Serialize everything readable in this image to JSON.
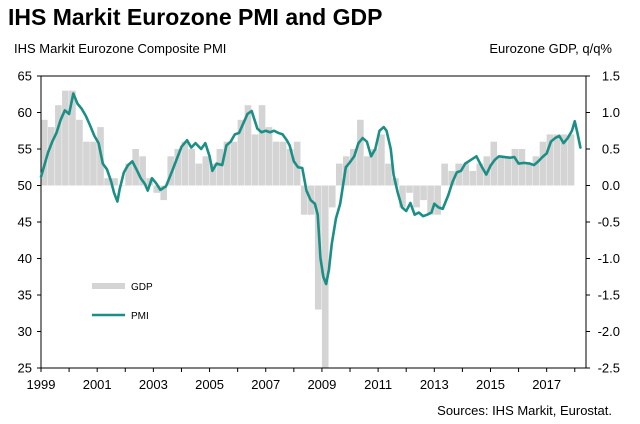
{
  "chart_data": {
    "type": "bar+line",
    "title": "IHS Markit Eurozone PMI and GDP",
    "left_axis_label": "IHS Markit Eurozone Composite PMI",
    "right_axis_label": "Eurozone GDP, q/q%",
    "source": "Sources: IHS Markit, Eurostat.",
    "x_range": [
      1999,
      2018.4
    ],
    "x_ticks": [
      "1999",
      "2001",
      "2003",
      "2005",
      "2007",
      "2009",
      "2011",
      "2013",
      "2015",
      "2017"
    ],
    "left_ylim": [
      25,
      65
    ],
    "left_ticks": [
      "25",
      "30",
      "35",
      "40",
      "45",
      "50",
      "55",
      "60",
      "65"
    ],
    "right_ylim": [
      -2.5,
      1.5
    ],
    "right_ticks": [
      "-2.5",
      "-2.0",
      "-1.5",
      "-1.0",
      "-0.5",
      "0.0",
      "0.5",
      "1.0",
      "1.5"
    ],
    "gdp_color": "#d4d4d4",
    "pmi_color": "#1b8f85",
    "series": [
      {
        "name": "GDP",
        "type": "bar",
        "axis": "right",
        "points": [
          [
            1999.0,
            0.9
          ],
          [
            1999.25,
            0.8
          ],
          [
            1999.5,
            1.1
          ],
          [
            1999.75,
            1.3
          ],
          [
            2000.0,
            1.3
          ],
          [
            2000.25,
            0.9
          ],
          [
            2000.5,
            0.6
          ],
          [
            2000.75,
            0.6
          ],
          [
            2001.0,
            0.8
          ],
          [
            2001.25,
            0.1
          ],
          [
            2001.5,
            0.1
          ],
          [
            2001.75,
            0.0
          ],
          [
            2002.0,
            0.3
          ],
          [
            2002.25,
            0.5
          ],
          [
            2002.5,
            0.4
          ],
          [
            2002.75,
            0.1
          ],
          [
            2003.0,
            -0.1
          ],
          [
            2003.25,
            -0.2
          ],
          [
            2003.5,
            0.4
          ],
          [
            2003.75,
            0.5
          ],
          [
            2004.0,
            0.6
          ],
          [
            2004.25,
            0.5
          ],
          [
            2004.5,
            0.3
          ],
          [
            2004.75,
            0.4
          ],
          [
            2005.0,
            0.3
          ],
          [
            2005.25,
            0.5
          ],
          [
            2005.5,
            0.6
          ],
          [
            2005.75,
            0.6
          ],
          [
            2006.0,
            0.9
          ],
          [
            2006.25,
            1.1
          ],
          [
            2006.5,
            0.7
          ],
          [
            2006.75,
            1.1
          ],
          [
            2007.0,
            0.8
          ],
          [
            2007.25,
            0.6
          ],
          [
            2007.5,
            0.6
          ],
          [
            2007.75,
            0.5
          ],
          [
            2008.0,
            0.6
          ],
          [
            2008.25,
            -0.4
          ],
          [
            2008.5,
            -0.4
          ],
          [
            2008.75,
            -1.7
          ],
          [
            2009.0,
            -2.6
          ],
          [
            2009.25,
            -0.3
          ],
          [
            2009.5,
            0.3
          ],
          [
            2009.75,
            0.4
          ],
          [
            2010.0,
            0.5
          ],
          [
            2010.25,
            0.9
          ],
          [
            2010.5,
            0.4
          ],
          [
            2010.75,
            0.5
          ],
          [
            2011.0,
            0.7
          ],
          [
            2011.25,
            0.3
          ],
          [
            2011.5,
            0.1
          ],
          [
            2011.75,
            -0.3
          ],
          [
            2012.0,
            -0.1
          ],
          [
            2012.25,
            -0.3
          ],
          [
            2012.5,
            -0.2
          ],
          [
            2012.75,
            -0.4
          ],
          [
            2013.0,
            -0.4
          ],
          [
            2013.25,
            0.3
          ],
          [
            2013.5,
            0.2
          ],
          [
            2013.75,
            0.3
          ],
          [
            2014.0,
            0.3
          ],
          [
            2014.25,
            0.2
          ],
          [
            2014.5,
            0.3
          ],
          [
            2014.75,
            0.4
          ],
          [
            2015.0,
            0.6
          ],
          [
            2015.25,
            0.4
          ],
          [
            2015.5,
            0.4
          ],
          [
            2015.75,
            0.5
          ],
          [
            2016.0,
            0.5
          ],
          [
            2016.25,
            0.3
          ],
          [
            2016.5,
            0.4
          ],
          [
            2016.75,
            0.6
          ],
          [
            2017.0,
            0.7
          ],
          [
            2017.25,
            0.7
          ],
          [
            2017.5,
            0.7
          ],
          [
            2017.75,
            0.7
          ]
        ]
      },
      {
        "name": "PMI",
        "type": "line",
        "axis": "left",
        "points": [
          [
            1999.0,
            51.2
          ],
          [
            1999.1,
            52.5
          ],
          [
            1999.25,
            54.5
          ],
          [
            1999.4,
            56.0
          ],
          [
            1999.55,
            57.2
          ],
          [
            1999.7,
            59.0
          ],
          [
            1999.85,
            60.3
          ],
          [
            2000.0,
            59.8
          ],
          [
            2000.15,
            62.6
          ],
          [
            2000.3,
            61.2
          ],
          [
            2000.45,
            60.5
          ],
          [
            2000.6,
            59.5
          ],
          [
            2000.75,
            58.2
          ],
          [
            2000.9,
            56.8
          ],
          [
            2001.05,
            55.8
          ],
          [
            2001.2,
            53.0
          ],
          [
            2001.35,
            52.2
          ],
          [
            2001.5,
            50.5
          ],
          [
            2001.6,
            49.0
          ],
          [
            2001.72,
            47.8
          ],
          [
            2001.8,
            49.5
          ],
          [
            2001.95,
            51.8
          ],
          [
            2002.1,
            52.8
          ],
          [
            2002.25,
            53.3
          ],
          [
            2002.4,
            52.2
          ],
          [
            2002.55,
            51.0
          ],
          [
            2002.7,
            50.2
          ],
          [
            2002.8,
            49.3
          ],
          [
            2002.95,
            51.0
          ],
          [
            2003.1,
            50.3
          ],
          [
            2003.25,
            49.4
          ],
          [
            2003.45,
            49.9
          ],
          [
            2003.65,
            51.8
          ],
          [
            2003.85,
            53.8
          ],
          [
            2004.0,
            55.3
          ],
          [
            2004.2,
            56.2
          ],
          [
            2004.35,
            55.2
          ],
          [
            2004.5,
            55.8
          ],
          [
            2004.7,
            55.0
          ],
          [
            2004.85,
            55.8
          ],
          [
            2005.0,
            54.0
          ],
          [
            2005.1,
            52.0
          ],
          [
            2005.25,
            53.0
          ],
          [
            2005.45,
            52.8
          ],
          [
            2005.6,
            55.5
          ],
          [
            2005.75,
            56.0
          ],
          [
            2005.9,
            57.0
          ],
          [
            2006.05,
            57.2
          ],
          [
            2006.2,
            58.5
          ],
          [
            2006.35,
            59.8
          ],
          [
            2006.5,
            60.2
          ],
          [
            2006.6,
            59.0
          ],
          [
            2006.7,
            57.8
          ],
          [
            2006.85,
            57.3
          ],
          [
            2007.0,
            57.5
          ],
          [
            2007.15,
            57.3
          ],
          [
            2007.3,
            57.5
          ],
          [
            2007.45,
            57.2
          ],
          [
            2007.6,
            57.0
          ],
          [
            2007.75,
            56.2
          ],
          [
            2007.85,
            55.5
          ],
          [
            2008.0,
            53.3
          ],
          [
            2008.15,
            52.5
          ],
          [
            2008.3,
            52.4
          ],
          [
            2008.45,
            49.3
          ],
          [
            2008.6,
            48.0
          ],
          [
            2008.75,
            47.5
          ],
          [
            2008.85,
            46.0
          ],
          [
            2008.95,
            40.0
          ],
          [
            2009.05,
            37.5
          ],
          [
            2009.15,
            36.5
          ],
          [
            2009.25,
            38.5
          ],
          [
            2009.35,
            42.0
          ],
          [
            2009.5,
            45.5
          ],
          [
            2009.65,
            47.5
          ],
          [
            2009.75,
            50.0
          ],
          [
            2009.85,
            52.5
          ],
          [
            2010.0,
            53.2
          ],
          [
            2010.15,
            54.0
          ],
          [
            2010.3,
            55.8
          ],
          [
            2010.45,
            56.5
          ],
          [
            2010.6,
            56.0
          ],
          [
            2010.75,
            54.0
          ],
          [
            2010.9,
            55.0
          ],
          [
            2011.05,
            57.5
          ],
          [
            2011.2,
            58.0
          ],
          [
            2011.3,
            57.5
          ],
          [
            2011.45,
            55.0
          ],
          [
            2011.55,
            51.5
          ],
          [
            2011.7,
            49.0
          ],
          [
            2011.85,
            47.0
          ],
          [
            2012.0,
            46.5
          ],
          [
            2012.15,
            47.6
          ],
          [
            2012.3,
            46.0
          ],
          [
            2012.45,
            46.3
          ],
          [
            2012.6,
            45.8
          ],
          [
            2012.75,
            46.0
          ],
          [
            2012.9,
            46.3
          ],
          [
            2013.0,
            47.5
          ],
          [
            2013.15,
            47.0
          ],
          [
            2013.3,
            46.8
          ],
          [
            2013.5,
            48.7
          ],
          [
            2013.65,
            50.5
          ],
          [
            2013.8,
            51.8
          ],
          [
            2013.95,
            52.0
          ],
          [
            2014.1,
            53.0
          ],
          [
            2014.3,
            53.5
          ],
          [
            2014.5,
            54.0
          ],
          [
            2014.7,
            52.5
          ],
          [
            2014.85,
            51.5
          ],
          [
            2015.0,
            52.7
          ],
          [
            2015.15,
            53.5
          ],
          [
            2015.3,
            54.0
          ],
          [
            2015.5,
            53.9
          ],
          [
            2015.7,
            53.8
          ],
          [
            2015.85,
            53.9
          ],
          [
            2016.0,
            53.0
          ],
          [
            2016.2,
            53.1
          ],
          [
            2016.4,
            53.0
          ],
          [
            2016.55,
            52.8
          ],
          [
            2016.7,
            53.3
          ],
          [
            2016.85,
            53.9
          ],
          [
            2017.0,
            54.4
          ],
          [
            2017.15,
            56.0
          ],
          [
            2017.3,
            56.5
          ],
          [
            2017.45,
            56.8
          ],
          [
            2017.6,
            55.8
          ],
          [
            2017.75,
            56.5
          ],
          [
            2017.9,
            57.5
          ],
          [
            2018.0,
            58.8
          ],
          [
            2018.1,
            57.1
          ],
          [
            2018.2,
            55.2
          ]
        ]
      }
    ]
  }
}
